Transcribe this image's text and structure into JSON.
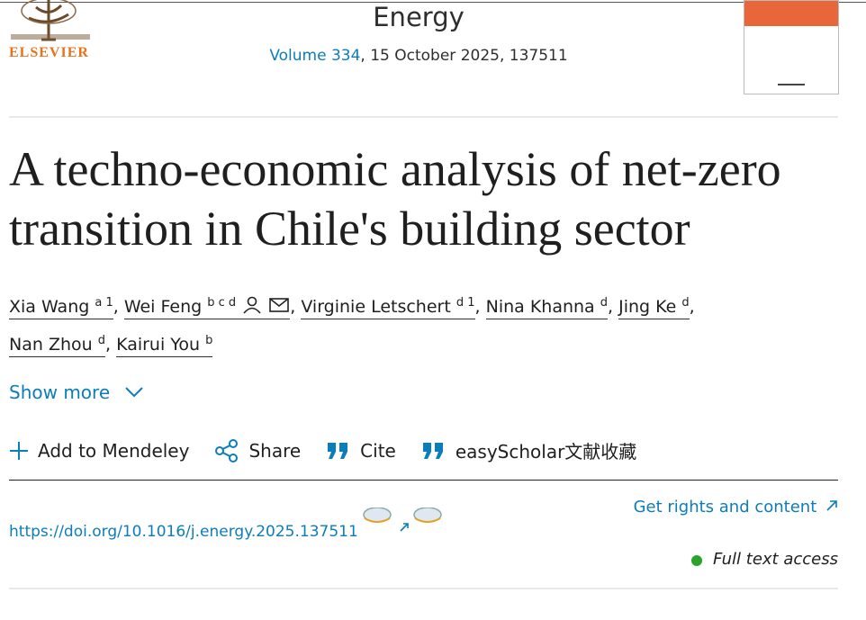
{
  "header": {
    "publisher": "ELSEVIER",
    "journal": "Energy",
    "volume": "Volume 334",
    "issue_info": ", 15 October 2025, 137511"
  },
  "title": "A techno-economic analysis of net-zero transition in Chile's building sector",
  "authors": [
    {
      "name": "Xia Wang",
      "affiliations": "a 1",
      "separator": ","
    },
    {
      "name": "Wei Feng",
      "affiliations": "b c d",
      "separator": ","
    },
    {
      "name": "Virginie Letschert",
      "affiliations": "d 1",
      "separator": ","
    },
    {
      "name": "Nina Khanna",
      "affiliations": "d",
      "separator": ","
    },
    {
      "name": "Jing Ke",
      "affiliations": "d",
      "separator": ","
    },
    {
      "name": "Nan Zhou",
      "affiliations": "d",
      "separator": ","
    },
    {
      "name": "Kairui You",
      "affiliations": "b"
    }
  ],
  "show_more": "Show more",
  "actions": [
    "Add to Mendeley",
    "Share",
    "Cite",
    "easyScholar文献收藏"
  ],
  "doi": "https://doi.org/10.1016/j.energy.2025.137511",
  "rights": "Get rights and content",
  "access": "Full text access"
}
